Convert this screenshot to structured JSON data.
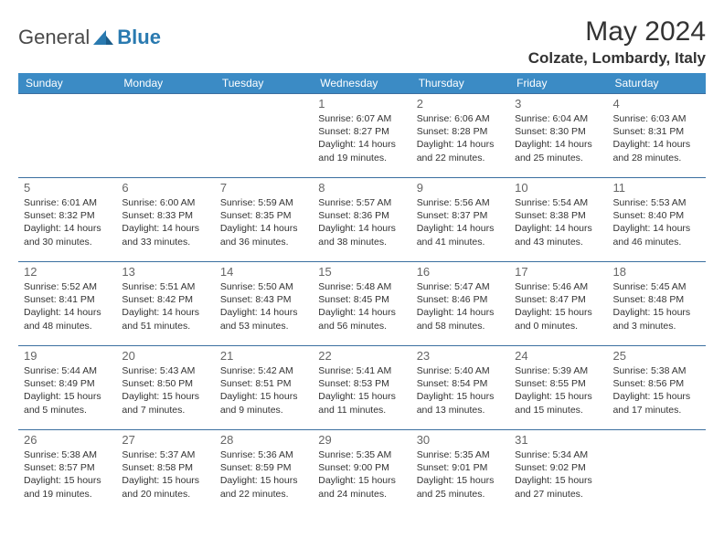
{
  "brand": {
    "text1": "General",
    "text2": "Blue"
  },
  "title": "May 2024",
  "location": "Colzate, Lombardy, Italy",
  "colors": {
    "header_bg": "#3b8bc5",
    "header_text": "#ffffff",
    "row_border": "#3b6fa0",
    "daynum": "#666666",
    "body_text": "#333333",
    "logo_gray": "#4a4a4a",
    "logo_blue": "#2a7ab0",
    "background": "#ffffff"
  },
  "fonts": {
    "title_pt": 30,
    "location_pt": 17,
    "header_pt": 12,
    "daynum_pt": 13,
    "body_pt": 10.5
  },
  "dayNames": [
    "Sunday",
    "Monday",
    "Tuesday",
    "Wednesday",
    "Thursday",
    "Friday",
    "Saturday"
  ],
  "weeks": [
    [
      null,
      null,
      null,
      {
        "n": "1",
        "sunrise": "Sunrise: 6:07 AM",
        "sunset": "Sunset: 8:27 PM",
        "day1": "Daylight: 14 hours",
        "day2": "and 19 minutes."
      },
      {
        "n": "2",
        "sunrise": "Sunrise: 6:06 AM",
        "sunset": "Sunset: 8:28 PM",
        "day1": "Daylight: 14 hours",
        "day2": "and 22 minutes."
      },
      {
        "n": "3",
        "sunrise": "Sunrise: 6:04 AM",
        "sunset": "Sunset: 8:30 PM",
        "day1": "Daylight: 14 hours",
        "day2": "and 25 minutes."
      },
      {
        "n": "4",
        "sunrise": "Sunrise: 6:03 AM",
        "sunset": "Sunset: 8:31 PM",
        "day1": "Daylight: 14 hours",
        "day2": "and 28 minutes."
      }
    ],
    [
      {
        "n": "5",
        "sunrise": "Sunrise: 6:01 AM",
        "sunset": "Sunset: 8:32 PM",
        "day1": "Daylight: 14 hours",
        "day2": "and 30 minutes."
      },
      {
        "n": "6",
        "sunrise": "Sunrise: 6:00 AM",
        "sunset": "Sunset: 8:33 PM",
        "day1": "Daylight: 14 hours",
        "day2": "and 33 minutes."
      },
      {
        "n": "7",
        "sunrise": "Sunrise: 5:59 AM",
        "sunset": "Sunset: 8:35 PM",
        "day1": "Daylight: 14 hours",
        "day2": "and 36 minutes."
      },
      {
        "n": "8",
        "sunrise": "Sunrise: 5:57 AM",
        "sunset": "Sunset: 8:36 PM",
        "day1": "Daylight: 14 hours",
        "day2": "and 38 minutes."
      },
      {
        "n": "9",
        "sunrise": "Sunrise: 5:56 AM",
        "sunset": "Sunset: 8:37 PM",
        "day1": "Daylight: 14 hours",
        "day2": "and 41 minutes."
      },
      {
        "n": "10",
        "sunrise": "Sunrise: 5:54 AM",
        "sunset": "Sunset: 8:38 PM",
        "day1": "Daylight: 14 hours",
        "day2": "and 43 minutes."
      },
      {
        "n": "11",
        "sunrise": "Sunrise: 5:53 AM",
        "sunset": "Sunset: 8:40 PM",
        "day1": "Daylight: 14 hours",
        "day2": "and 46 minutes."
      }
    ],
    [
      {
        "n": "12",
        "sunrise": "Sunrise: 5:52 AM",
        "sunset": "Sunset: 8:41 PM",
        "day1": "Daylight: 14 hours",
        "day2": "and 48 minutes."
      },
      {
        "n": "13",
        "sunrise": "Sunrise: 5:51 AM",
        "sunset": "Sunset: 8:42 PM",
        "day1": "Daylight: 14 hours",
        "day2": "and 51 minutes."
      },
      {
        "n": "14",
        "sunrise": "Sunrise: 5:50 AM",
        "sunset": "Sunset: 8:43 PM",
        "day1": "Daylight: 14 hours",
        "day2": "and 53 minutes."
      },
      {
        "n": "15",
        "sunrise": "Sunrise: 5:48 AM",
        "sunset": "Sunset: 8:45 PM",
        "day1": "Daylight: 14 hours",
        "day2": "and 56 minutes."
      },
      {
        "n": "16",
        "sunrise": "Sunrise: 5:47 AM",
        "sunset": "Sunset: 8:46 PM",
        "day1": "Daylight: 14 hours",
        "day2": "and 58 minutes."
      },
      {
        "n": "17",
        "sunrise": "Sunrise: 5:46 AM",
        "sunset": "Sunset: 8:47 PM",
        "day1": "Daylight: 15 hours",
        "day2": "and 0 minutes."
      },
      {
        "n": "18",
        "sunrise": "Sunrise: 5:45 AM",
        "sunset": "Sunset: 8:48 PM",
        "day1": "Daylight: 15 hours",
        "day2": "and 3 minutes."
      }
    ],
    [
      {
        "n": "19",
        "sunrise": "Sunrise: 5:44 AM",
        "sunset": "Sunset: 8:49 PM",
        "day1": "Daylight: 15 hours",
        "day2": "and 5 minutes."
      },
      {
        "n": "20",
        "sunrise": "Sunrise: 5:43 AM",
        "sunset": "Sunset: 8:50 PM",
        "day1": "Daylight: 15 hours",
        "day2": "and 7 minutes."
      },
      {
        "n": "21",
        "sunrise": "Sunrise: 5:42 AM",
        "sunset": "Sunset: 8:51 PM",
        "day1": "Daylight: 15 hours",
        "day2": "and 9 minutes."
      },
      {
        "n": "22",
        "sunrise": "Sunrise: 5:41 AM",
        "sunset": "Sunset: 8:53 PM",
        "day1": "Daylight: 15 hours",
        "day2": "and 11 minutes."
      },
      {
        "n": "23",
        "sunrise": "Sunrise: 5:40 AM",
        "sunset": "Sunset: 8:54 PM",
        "day1": "Daylight: 15 hours",
        "day2": "and 13 minutes."
      },
      {
        "n": "24",
        "sunrise": "Sunrise: 5:39 AM",
        "sunset": "Sunset: 8:55 PM",
        "day1": "Daylight: 15 hours",
        "day2": "and 15 minutes."
      },
      {
        "n": "25",
        "sunrise": "Sunrise: 5:38 AM",
        "sunset": "Sunset: 8:56 PM",
        "day1": "Daylight: 15 hours",
        "day2": "and 17 minutes."
      }
    ],
    [
      {
        "n": "26",
        "sunrise": "Sunrise: 5:38 AM",
        "sunset": "Sunset: 8:57 PM",
        "day1": "Daylight: 15 hours",
        "day2": "and 19 minutes."
      },
      {
        "n": "27",
        "sunrise": "Sunrise: 5:37 AM",
        "sunset": "Sunset: 8:58 PM",
        "day1": "Daylight: 15 hours",
        "day2": "and 20 minutes."
      },
      {
        "n": "28",
        "sunrise": "Sunrise: 5:36 AM",
        "sunset": "Sunset: 8:59 PM",
        "day1": "Daylight: 15 hours",
        "day2": "and 22 minutes."
      },
      {
        "n": "29",
        "sunrise": "Sunrise: 5:35 AM",
        "sunset": "Sunset: 9:00 PM",
        "day1": "Daylight: 15 hours",
        "day2": "and 24 minutes."
      },
      {
        "n": "30",
        "sunrise": "Sunrise: 5:35 AM",
        "sunset": "Sunset: 9:01 PM",
        "day1": "Daylight: 15 hours",
        "day2": "and 25 minutes."
      },
      {
        "n": "31",
        "sunrise": "Sunrise: 5:34 AM",
        "sunset": "Sunset: 9:02 PM",
        "day1": "Daylight: 15 hours",
        "day2": "and 27 minutes."
      },
      null
    ]
  ]
}
